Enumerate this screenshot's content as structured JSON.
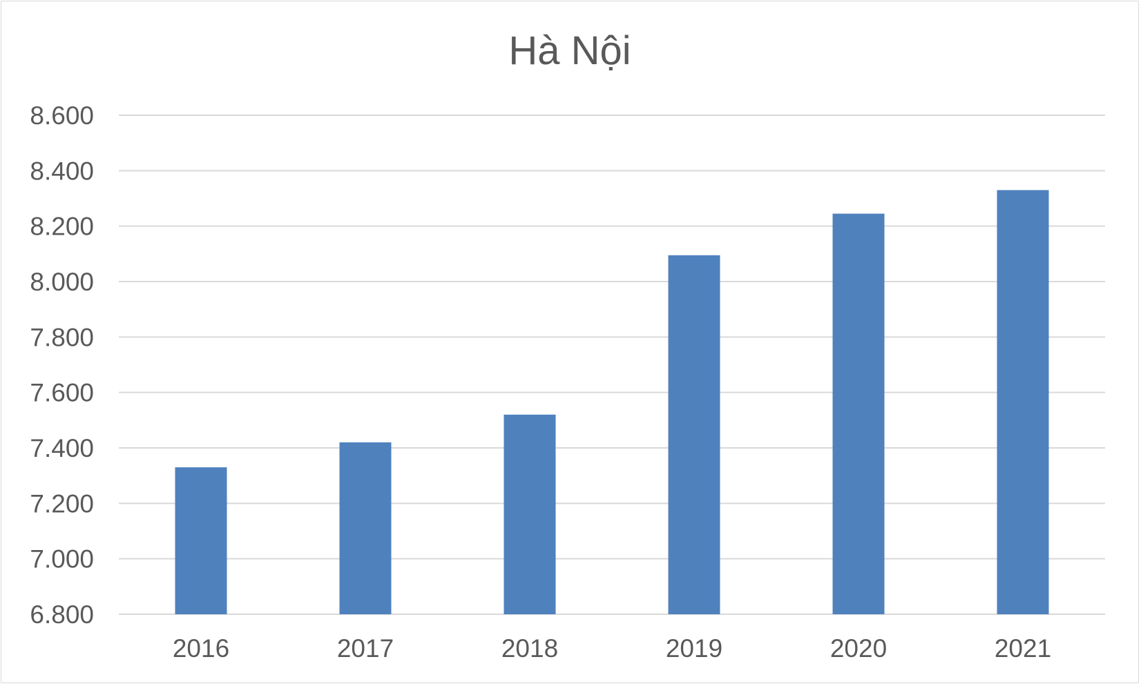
{
  "chart_data": {
    "type": "bar",
    "title": "Hà Nội",
    "xlabel": "",
    "ylabel": "",
    "categories": [
      "2016",
      "2017",
      "2018",
      "2019",
      "2020",
      "2021"
    ],
    "values": [
      7330,
      7420,
      7520,
      8095,
      8245,
      8330
    ],
    "ylim": [
      6800,
      8600
    ],
    "y_ticks": [
      6800,
      7000,
      7200,
      7400,
      7600,
      7800,
      8000,
      8200,
      8400,
      8600
    ],
    "y_tick_labels": [
      "6.800",
      "7.000",
      "7.200",
      "7.400",
      "7.600",
      "7.800",
      "8.000",
      "8.200",
      "8.400",
      "8.600"
    ],
    "grid": true,
    "legend": "none",
    "colors": {
      "bar": "#4f81bd",
      "grid": "#d9d9d9",
      "text": "#595959"
    }
  }
}
